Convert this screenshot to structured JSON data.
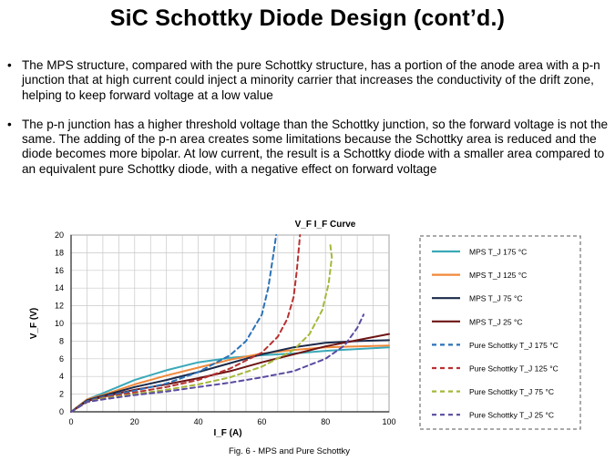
{
  "slide": {
    "title": "SiC Schottky Diode Design (cont’d.)",
    "bullets": [
      "The MPS structure, compared with the pure Schottky structure, has a portion of the anode area with a p-n junction that at high current could inject a minority carrier that increases the conductivity of the drift zone, helping to keep forward voltage at a low value",
      "The p-n junction has a higher threshold voltage than the Schottky junction, so the forward voltage is not the same. The adding of the p-n area creates some limitations because the Schottky area is reduced and the diode becomes more bipolar. At low current, the result is a Schottky diode with a smaller area compared to an equivalent pure Schottky diode, with a negative effect on forward voltage"
    ],
    "bullet_symbol": "•"
  },
  "chart_data": {
    "type": "line",
    "title": "V_F I_F Curve",
    "xlabel": "I_F (A)",
    "ylabel": "V_F (V)",
    "caption": "Fig. 6 - MPS and Pure Schottky",
    "xlim": [
      0,
      100
    ],
    "ylim": [
      0,
      20
    ],
    "xticks": [
      0,
      20,
      40,
      60,
      80,
      100
    ],
    "yticks": [
      0,
      2,
      4,
      6,
      8,
      10,
      12,
      14,
      16,
      18,
      20
    ],
    "grid": true,
    "legend_position": "right",
    "series": [
      {
        "name": "MPS  T_J 175 °C",
        "color": "#3aa9b8",
        "dashed": false,
        "points": [
          [
            0,
            0
          ],
          [
            5,
            1.4
          ],
          [
            10,
            2.1
          ],
          [
            20,
            3.6
          ],
          [
            30,
            4.7
          ],
          [
            40,
            5.6
          ],
          [
            50,
            6.1
          ],
          [
            60,
            6.4
          ],
          [
            70,
            6.6
          ],
          [
            80,
            6.9
          ],
          [
            90,
            7.1
          ],
          [
            100,
            7.3
          ]
        ]
      },
      {
        "name": "MPS  T_J 125 °C",
        "color": "#f0883a",
        "dashed": false,
        "points": [
          [
            0,
            0
          ],
          [
            5,
            1.4
          ],
          [
            10,
            1.9
          ],
          [
            20,
            3.1
          ],
          [
            30,
            4.1
          ],
          [
            40,
            5.0
          ],
          [
            50,
            5.9
          ],
          [
            60,
            6.6
          ],
          [
            70,
            7.0
          ],
          [
            80,
            7.3
          ],
          [
            90,
            7.4
          ],
          [
            100,
            7.5
          ]
        ]
      },
      {
        "name": "MPS  T_J 75 °C",
        "color": "#1c2a4a",
        "dashed": false,
        "points": [
          [
            0,
            0
          ],
          [
            5,
            1.3
          ],
          [
            10,
            1.8
          ],
          [
            20,
            2.8
          ],
          [
            30,
            3.6
          ],
          [
            40,
            4.5
          ],
          [
            50,
            5.5
          ],
          [
            60,
            6.5
          ],
          [
            70,
            7.3
          ],
          [
            80,
            7.8
          ],
          [
            90,
            8.0
          ],
          [
            100,
            8.1
          ]
        ]
      },
      {
        "name": "MPS  T_J 25 °C",
        "color": "#6e1414",
        "dashed": false,
        "points": [
          [
            0,
            0
          ],
          [
            5,
            1.2
          ],
          [
            10,
            1.7
          ],
          [
            20,
            2.5
          ],
          [
            30,
            3.1
          ],
          [
            40,
            3.8
          ],
          [
            50,
            4.6
          ],
          [
            60,
            5.6
          ],
          [
            70,
            6.5
          ],
          [
            80,
            7.4
          ],
          [
            90,
            8.1
          ],
          [
            100,
            8.8
          ]
        ]
      },
      {
        "name": "Pure Schottky  T_J 175 °C",
        "color": "#2c72b8",
        "dashed": true,
        "points": [
          [
            0,
            0
          ],
          [
            5,
            1.2
          ],
          [
            10,
            1.7
          ],
          [
            20,
            2.4
          ],
          [
            30,
            3.2
          ],
          [
            40,
            4.5
          ],
          [
            50,
            6.4
          ],
          [
            55,
            8.0
          ],
          [
            60,
            11.0
          ],
          [
            62,
            14.0
          ],
          [
            63.5,
            17.5
          ],
          [
            64.5,
            20
          ]
        ]
      },
      {
        "name": "Pure Schottky  T_J 125 °C",
        "color": "#b83232",
        "dashed": true,
        "points": [
          [
            0,
            0
          ],
          [
            5,
            1.1
          ],
          [
            10,
            1.6
          ],
          [
            20,
            2.2
          ],
          [
            30,
            2.8
          ],
          [
            40,
            3.6
          ],
          [
            50,
            4.9
          ],
          [
            60,
            6.7
          ],
          [
            65,
            8.5
          ],
          [
            68,
            10.5
          ],
          [
            70,
            13.0
          ],
          [
            71,
            16.0
          ],
          [
            72,
            20
          ]
        ]
      },
      {
        "name": "Pure Schottky  T_J 75 °C",
        "color": "#a6b83a",
        "dashed": true,
        "points": [
          [
            0,
            0
          ],
          [
            5,
            1.1
          ],
          [
            10,
            1.5
          ],
          [
            20,
            2.0
          ],
          [
            30,
            2.5
          ],
          [
            40,
            3.1
          ],
          [
            50,
            3.9
          ],
          [
            60,
            5.1
          ],
          [
            70,
            7.0
          ],
          [
            75,
            8.8
          ],
          [
            79,
            11.5
          ],
          [
            81,
            14.5
          ],
          [
            82,
            17.5
          ],
          [
            81.5,
            19
          ]
        ]
      },
      {
        "name": "Pure Schottky  T_J 25 °C",
        "color": "#5a4aa0",
        "dashed": true,
        "points": [
          [
            0,
            0
          ],
          [
            5,
            1.1
          ],
          [
            10,
            1.4
          ],
          [
            20,
            1.9
          ],
          [
            30,
            2.3
          ],
          [
            40,
            2.8
          ],
          [
            50,
            3.3
          ],
          [
            60,
            3.9
          ],
          [
            70,
            4.6
          ],
          [
            80,
            6.0
          ],
          [
            86,
            7.5
          ],
          [
            90,
            9.5
          ],
          [
            92,
            11.0
          ]
        ]
      }
    ]
  }
}
